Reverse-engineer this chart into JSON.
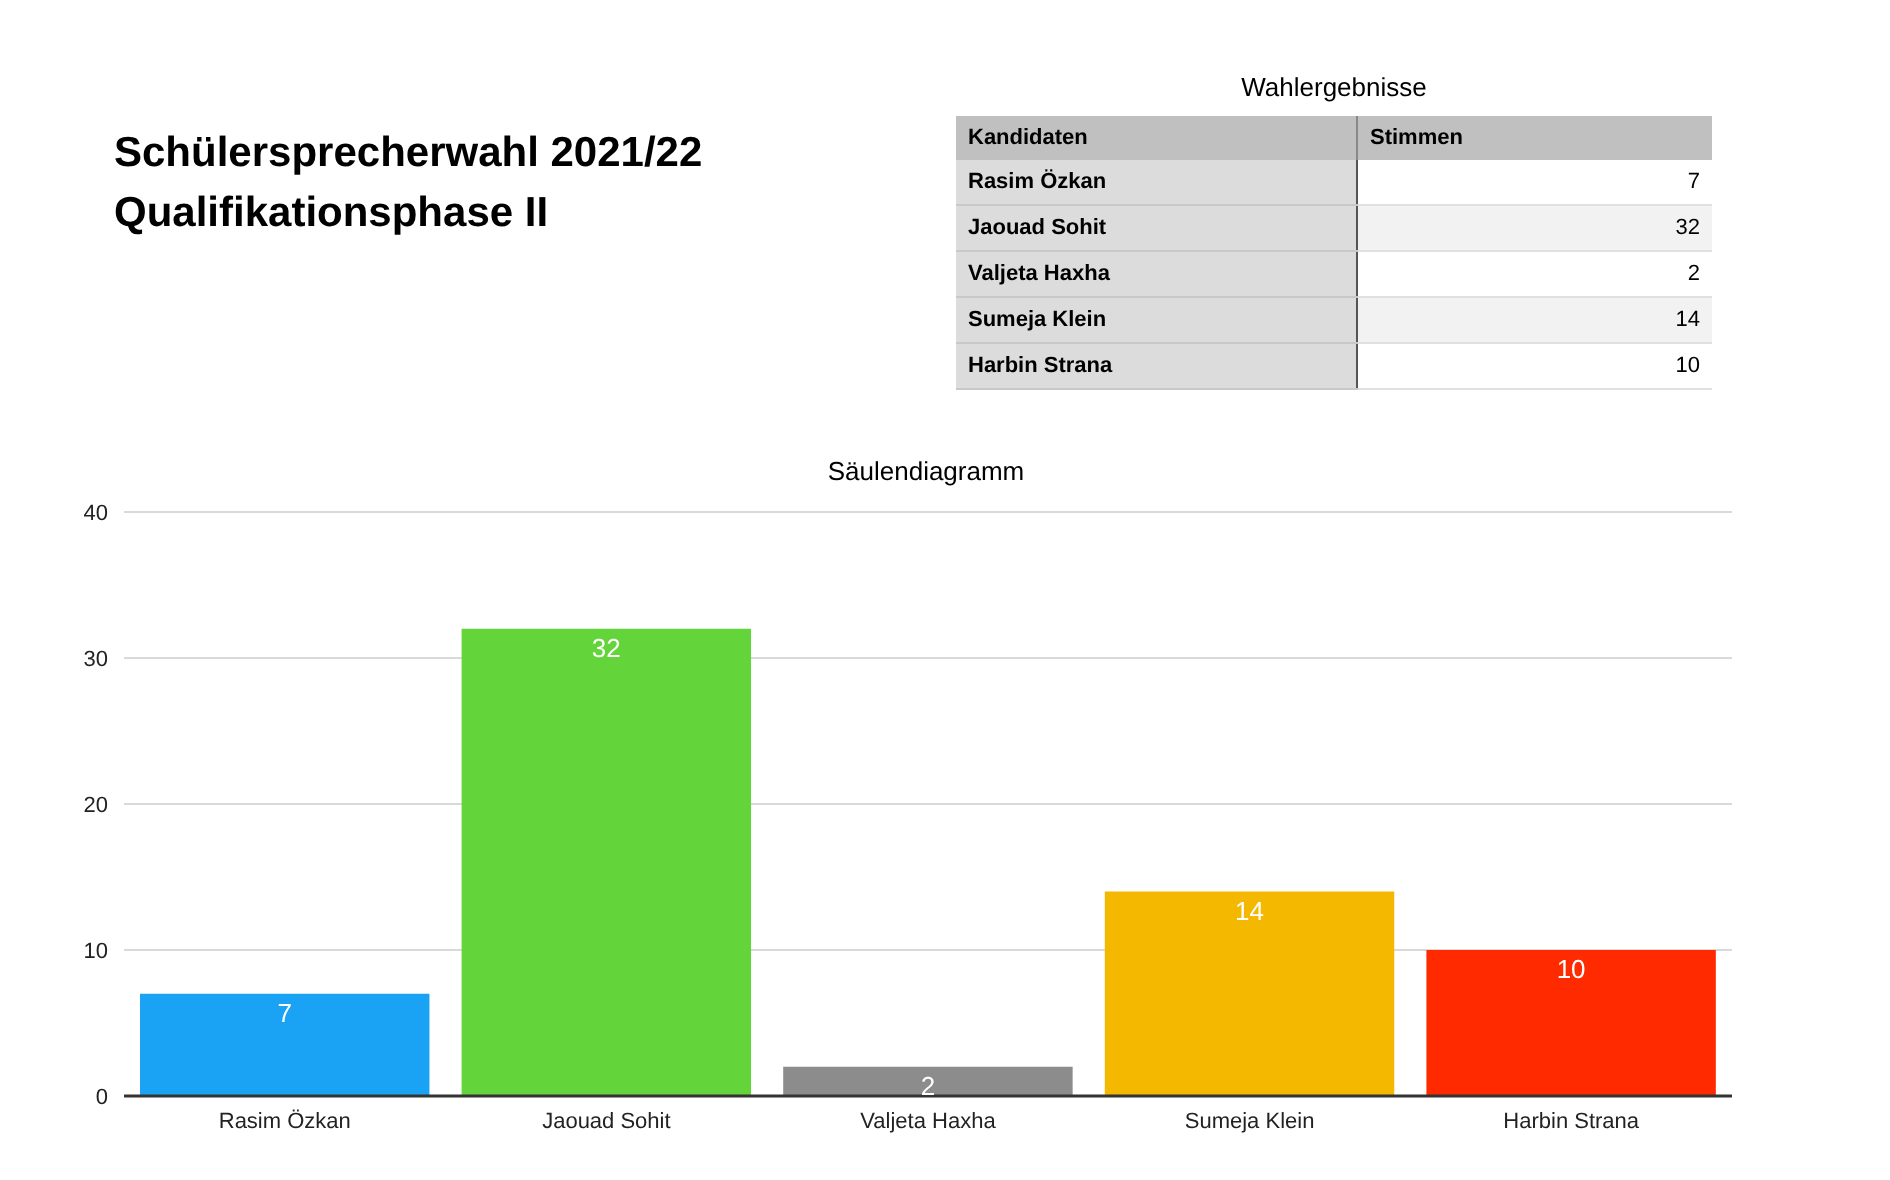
{
  "chart_data": {
    "type": "bar",
    "title": "Schülersprecherwahl 2021/22\nQualifikationsphase II",
    "subtitle": "Säulendiagramm",
    "annotations": [
      "Wahlergebnisse",
      "Kandidaten",
      "Stimmen"
    ],
    "categories": [
      "Rasim Özkan",
      "Jaouad Sohit",
      "Valjeta Haxha",
      "Sumeja Klein",
      "Harbin Strana"
    ],
    "values": [
      7,
      32,
      2,
      14,
      10
    ],
    "value_labels": [
      "7",
      "32",
      "2",
      "14",
      "10"
    ],
    "colors": [
      "#1aa3f5",
      "#63d43a",
      "#8c8c8c",
      "#f5b800",
      "#ff2a00"
    ],
    "ylim": [
      0,
      40
    ],
    "yticks": [
      0,
      10,
      20,
      30,
      40
    ],
    "grid": "y",
    "legend": false
  }
}
